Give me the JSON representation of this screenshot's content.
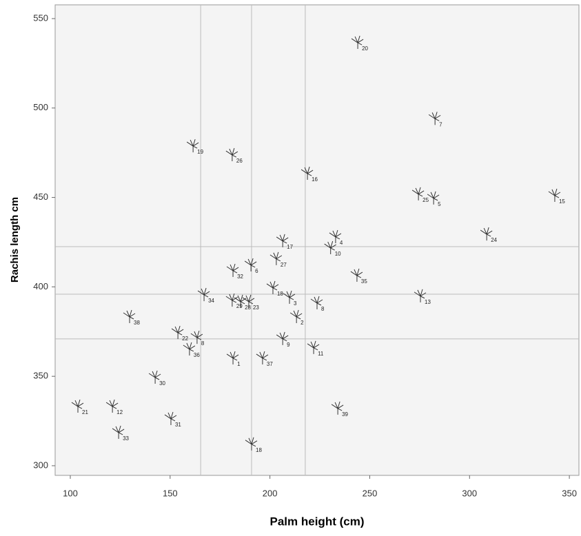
{
  "chart_data": {
    "type": "scatter",
    "x_label": "Palm height (cm)",
    "y_label": "Rachis length cm",
    "xlim": [
      92.4,
      354.8
    ],
    "ylim": [
      294.6,
      557.7
    ],
    "xticks": [
      100,
      150,
      200,
      250,
      300,
      350
    ],
    "yticks": [
      300,
      350,
      400,
      450,
      500,
      550
    ],
    "reference_x": [
      165.3,
      190.8,
      217.7
    ],
    "reference_y": [
      370.9,
      395.9,
      422.5
    ],
    "series": [
      {
        "color": "#333333",
        "point_labels": [
          "20",
          "7",
          "19",
          "26",
          "16",
          "25",
          "5",
          "15",
          "24",
          "17",
          "4",
          "10",
          "27",
          "6",
          "32",
          "35",
          "34",
          "18",
          "3",
          "29",
          "28",
          "23",
          "13",
          "8",
          "2",
          "38",
          "22",
          "8",
          "36",
          "9",
          "11",
          "1",
          "37",
          "30",
          "21",
          "12",
          "31",
          "33",
          "39",
          "18"
        ],
        "x": [
          244,
          282.7,
          161.5,
          181.1,
          218.8,
          274.4,
          282,
          342.7,
          308.6,
          206.4,
          232.9,
          230.4,
          203.2,
          190.5,
          181.5,
          243.6,
          167,
          201.5,
          209.8,
          181.1,
          185.3,
          189.4,
          275.4,
          223.6,
          213.3,
          129.7,
          153.9,
          163.5,
          159.7,
          206.4,
          221.9,
          181.5,
          196.3,
          142.5,
          103.8,
          121.1,
          150.4,
          124.2,
          234,
          190.8
        ],
        "values": [
          536.5,
          494,
          478.7,
          473.7,
          463.3,
          451.8,
          449.5,
          451,
          429.4,
          425.6,
          427.9,
          421.7,
          415.6,
          412.1,
          409,
          406.3,
          395.5,
          399.4,
          394,
          392.4,
          391.7,
          391.7,
          394.8,
          390.9,
          383.2,
          383.2,
          374.3,
          371.6,
          365.1,
          370.9,
          365.9,
          360.1,
          360.1,
          349.3,
          333.1,
          333.1,
          326.2,
          318.5,
          332,
          312
        ]
      }
    ]
  }
}
